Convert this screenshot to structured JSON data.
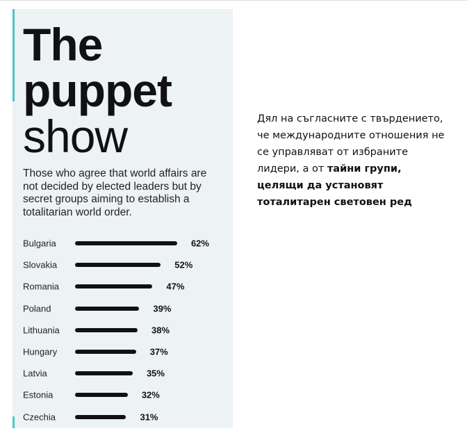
{
  "chart_data": {
    "type": "bar",
    "title": [
      "The",
      "puppet",
      "show"
    ],
    "subtitle": "Those who agree that world affairs are not decided by elected leaders but by secret groups aiming to establish a totalitarian world order.",
    "categories": [
      "Bulgaria",
      "Slovakia",
      "Romania",
      "Poland",
      "Lithuania",
      "Hungary",
      "Latvia",
      "Estonia",
      "Czechia"
    ],
    "values": [
      62,
      52,
      47,
      39,
      38,
      37,
      35,
      32,
      31
    ],
    "value_labels": [
      "62%",
      "52%",
      "47%",
      "39%",
      "38%",
      "37%",
      "35%",
      "32%",
      "31%"
    ],
    "color": "#111111",
    "annotation": {
      "text": "Дял на съгласните с твърдението, че международните отношения не се управляват от избраните лидери, а от",
      "bold": "тайни групи, целящи да установят тоталитарен световен ред"
    }
  }
}
